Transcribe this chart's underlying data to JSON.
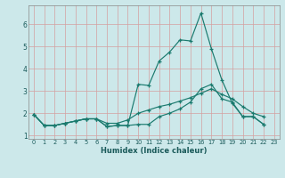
{
  "xlabel": "Humidex (Indice chaleur)",
  "bg_color": "#cce8ea",
  "line_color": "#1a7a6e",
  "grid_color": "#d4a0a0",
  "x_values": [
    0,
    1,
    2,
    3,
    4,
    5,
    6,
    7,
    8,
    9,
    10,
    11,
    12,
    13,
    14,
    15,
    16,
    17,
    18,
    19,
    20,
    21,
    22,
    23
  ],
  "line1_y": [
    1.95,
    1.45,
    1.45,
    1.55,
    1.65,
    1.75,
    1.75,
    1.4,
    1.45,
    1.45,
    3.3,
    3.25,
    4.35,
    4.75,
    5.3,
    5.25,
    6.5,
    4.9,
    3.5,
    2.45,
    1.85,
    1.85,
    1.5,
    null
  ],
  "line2_y": [
    1.95,
    1.45,
    1.45,
    1.55,
    1.65,
    1.75,
    1.75,
    1.4,
    1.45,
    1.45,
    1.5,
    1.5,
    1.85,
    2.0,
    2.2,
    2.5,
    3.1,
    3.3,
    2.65,
    2.5,
    1.85,
    1.85,
    1.5,
    null
  ],
  "line3_y": [
    1.95,
    1.45,
    1.45,
    1.55,
    1.65,
    1.75,
    1.75,
    1.55,
    1.55,
    1.7,
    2.0,
    2.15,
    2.3,
    2.4,
    2.55,
    2.7,
    2.9,
    3.1,
    2.85,
    2.65,
    2.3,
    2.0,
    1.85,
    null
  ],
  "xlim": [
    -0.5,
    23.5
  ],
  "ylim": [
    0.85,
    6.85
  ],
  "yticks": [
    1,
    2,
    3,
    4,
    5,
    6
  ],
  "xticks": [
    0,
    1,
    2,
    3,
    4,
    5,
    6,
    7,
    8,
    9,
    10,
    11,
    12,
    13,
    14,
    15,
    16,
    17,
    18,
    19,
    20,
    21,
    22,
    23
  ],
  "tick_color": "#1a5a5a",
  "xlabel_fontsize": 6.0,
  "ytick_fontsize": 5.5,
  "xtick_fontsize": 4.8
}
